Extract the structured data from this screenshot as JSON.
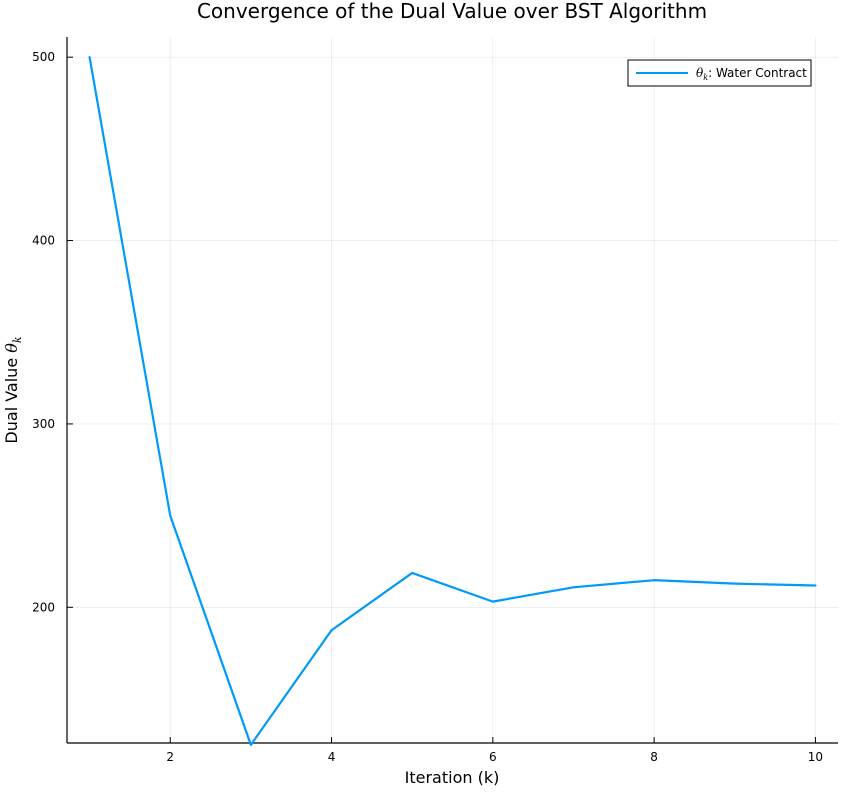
{
  "chart_data": {
    "type": "line",
    "title": "Convergence of the Dual Value over BST Algorithm",
    "xlabel": "Iteration (k)",
    "ylabel": "Dual Value θ_k",
    "ylabel_main": "Dual Value ",
    "ylabel_symbol": "θ",
    "ylabel_sub": "k",
    "xlim": [
      0.72,
      10.28
    ],
    "ylim": [
      126,
      511
    ],
    "x_ticks": [
      2,
      4,
      6,
      8,
      10
    ],
    "y_ticks": [
      200,
      300,
      400,
      500
    ],
    "grid": true,
    "legend_position": "top-right",
    "series": [
      {
        "name": "θ_k: Water Contract",
        "legend_symbol": "θ",
        "legend_sub": "k",
        "legend_rest": ": Water Contract",
        "color": "#009af9",
        "x": [
          1,
          2,
          3,
          4,
          5,
          6,
          7,
          8,
          9,
          10
        ],
        "y": [
          500,
          250,
          125,
          187.5,
          218.75,
          203.1,
          210.9,
          214.8,
          212.9,
          211.9
        ]
      }
    ]
  }
}
